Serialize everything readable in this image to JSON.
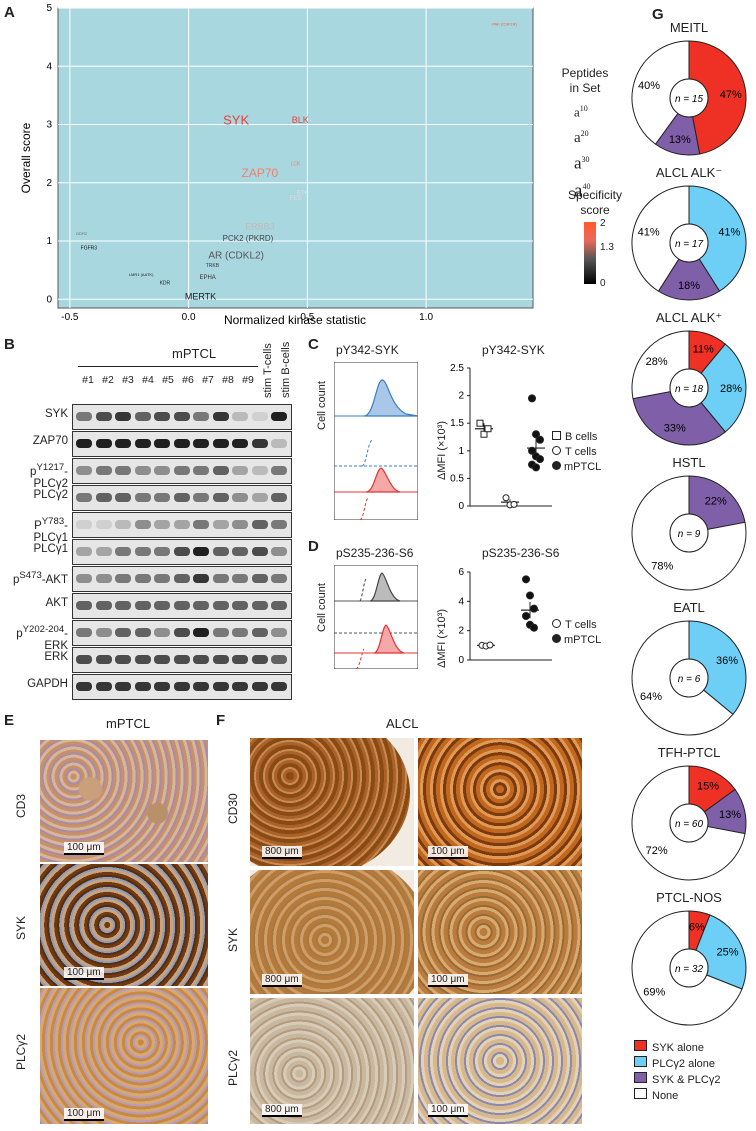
{
  "panels": {
    "A": "A",
    "B": "B",
    "C": "C",
    "D": "D",
    "E": "E",
    "F": "F",
    "G": "G"
  },
  "colors": {
    "plot_bg": "#a9d7e0",
    "red": "#ee3124",
    "blue": "#6ecff6",
    "purple": "#7f5fa8",
    "white": "#ffffff",
    "stain": "#b06a2a"
  },
  "panelA": {
    "xlabel": "Normalized kinase statistic",
    "ylabel": "Overall score",
    "legend_title": "Peptides\nin Set",
    "legend_sizes": [
      "a10",
      "a20",
      "a30",
      "a40"
    ],
    "colorbar_title": "Specificity\nscore",
    "colorbar_ticks": [
      "2",
      "1.3",
      "0"
    ]
  },
  "chart_data": {
    "type": "scatter",
    "xlabel": "Normalized kinase statistic",
    "ylabel": "Overall score",
    "xlim": [
      -0.55,
      1.45
    ],
    "ylim": [
      -0.15,
      5
    ],
    "xticks": [
      "-0.5",
      "0.0",
      "0.5",
      "1.0"
    ],
    "yticks": [
      "0",
      "1",
      "2",
      "3",
      "4",
      "5"
    ],
    "points": [
      {
        "label": "PAK (CSF1R)",
        "x": 1.33,
        "y": 4.7,
        "size": 4,
        "color": "#ee5544"
      },
      {
        "label": "SYK",
        "x": 0.2,
        "y": 3.0,
        "size": 13,
        "color": "#e8403a"
      },
      {
        "label": "BLK",
        "x": 0.47,
        "y": 3.03,
        "size": 9,
        "color": "#e8403a"
      },
      {
        "label": "LCK",
        "x": 0.45,
        "y": 2.3,
        "size": 5,
        "color": "#f08060"
      },
      {
        "label": "ZAP70",
        "x": 0.3,
        "y": 2.1,
        "size": 12,
        "color": "#f08070"
      },
      {
        "label": "BTK",
        "x": 0.48,
        "y": 1.8,
        "size": 6,
        "color": "#dddddd"
      },
      {
        "label": "FES",
        "x": 0.45,
        "y": 1.7,
        "size": 6,
        "color": "#dddddd"
      },
      {
        "label": "ERBB3",
        "x": 0.3,
        "y": 1.2,
        "size": 9,
        "color": "#bbbbbb"
      },
      {
        "label": "FGFR3",
        "x": -0.42,
        "y": 0.85,
        "size": 5,
        "color": "#111111"
      },
      {
        "label": "PCK2 (PKRD)",
        "x": 0.25,
        "y": 1.0,
        "size": 8,
        "color": "#444444"
      },
      {
        "label": "AR (CDKL2)",
        "x": 0.2,
        "y": 0.7,
        "size": 10,
        "color": "#555555"
      },
      {
        "label": "EPHA",
        "x": 0.08,
        "y": 0.35,
        "size": 6,
        "color": "#333333"
      },
      {
        "label": "MERTK",
        "x": 0.05,
        "y": 0.0,
        "size": 9,
        "color": "#222222"
      },
      {
        "label": "DDR2",
        "x": -0.45,
        "y": 1.1,
        "size": 4,
        "color": "#666666"
      },
      {
        "label": "LMR1 (AATK)",
        "x": -0.2,
        "y": 0.4,
        "size": 4,
        "color": "#222222"
      },
      {
        "label": "TRKB",
        "x": 0.1,
        "y": 0.55,
        "size": 5,
        "color": "#333333"
      },
      {
        "label": "KDR",
        "x": -0.1,
        "y": 0.25,
        "size": 5,
        "color": "#222222"
      }
    ]
  },
  "panelB": {
    "title": "mPTCL",
    "lanes": [
      "#1",
      "#2",
      "#3",
      "#4",
      "#5",
      "#6",
      "#7",
      "#8",
      "#9"
    ],
    "stim": [
      "stim T-cells",
      "stim B-cells"
    ],
    "rows": [
      "SYK",
      "ZAP70",
      "pY1217-PLCγ2",
      "PLCγ2",
      "PY783-PLCγ1",
      "PLCγ1",
      "pS473-AKT",
      "AKT",
      "pY202-204-ERK",
      "ERK",
      "GAPDH"
    ]
  },
  "panelC": {
    "hist_title": "pY342-SYK",
    "scatter_title": "pY342-SYK",
    "ylabel": "ΔMFI (×10³)",
    "yticks": [
      "0",
      "0.5",
      "1",
      "1.5",
      "2",
      "2.5"
    ],
    "hist_ylabel": "Cell count",
    "legend": [
      "B cells",
      "T cells",
      "mPTCL"
    ]
  },
  "panelD": {
    "hist_title": "pS235-236-S6",
    "scatter_title": "pS235-236-S6",
    "ylabel": "ΔMFI (×10³)",
    "yticks": [
      "0",
      "2",
      "4",
      "6"
    ],
    "hist_ylabel": "Cell count",
    "legend": [
      "T cells",
      "mPTCL"
    ]
  },
  "panelE": {
    "title": "mPTCL",
    "rows": [
      "CD3",
      "SYK",
      "PLCγ2"
    ],
    "scale": "100 μm"
  },
  "panelF": {
    "title": "ALCL",
    "rows": [
      "CD30",
      "SYK",
      "PLCγ2"
    ],
    "scale_low": "800 μm",
    "scale_high": "100 μm"
  },
  "panelG": {
    "pies": [
      {
        "title": "MEITL",
        "n": "n = 15",
        "slices": [
          {
            "k": "red",
            "v": 47,
            "label": "47%"
          },
          {
            "k": "purple",
            "v": 13,
            "label": "13%"
          },
          {
            "k": "white",
            "v": 40,
            "label": "40%"
          }
        ]
      },
      {
        "title": "ALCL ALK⁻",
        "n": "n = 17",
        "slices": [
          {
            "k": "blue",
            "v": 41,
            "label": "41%"
          },
          {
            "k": "purple",
            "v": 18,
            "label": "18%"
          },
          {
            "k": "white",
            "v": 41,
            "label": "41%"
          }
        ]
      },
      {
        "title": "ALCL ALK⁺",
        "n": "n = 18",
        "slices": [
          {
            "k": "red",
            "v": 11,
            "label": "11%"
          },
          {
            "k": "blue",
            "v": 28,
            "label": "28%"
          },
          {
            "k": "purple",
            "v": 33,
            "label": "33%"
          },
          {
            "k": "white",
            "v": 28,
            "label": "28%"
          }
        ]
      },
      {
        "title": "HSTL",
        "n": "n = 9",
        "slices": [
          {
            "k": "purple",
            "v": 22,
            "label": "22%"
          },
          {
            "k": "white",
            "v": 78,
            "label": "78%"
          }
        ]
      },
      {
        "title": "EATL",
        "n": "n = 6",
        "slices": [
          {
            "k": "blue",
            "v": 36,
            "label": "36%"
          },
          {
            "k": "white",
            "v": 64,
            "label": "64%"
          }
        ]
      },
      {
        "title": "TFH-PTCL",
        "n": "n = 60",
        "slices": [
          {
            "k": "red",
            "v": 15,
            "label": "15%"
          },
          {
            "k": "purple",
            "v": 13,
            "label": "13%"
          },
          {
            "k": "white",
            "v": 72,
            "label": "72%"
          }
        ]
      },
      {
        "title": "PTCL-NOS",
        "n": "n = 32",
        "slices": [
          {
            "k": "red",
            "v": 6,
            "label": "6%"
          },
          {
            "k": "blue",
            "v": 25,
            "label": "25%"
          },
          {
            "k": "white",
            "v": 69,
            "label": "69%"
          }
        ]
      }
    ],
    "legend": [
      {
        "k": "red",
        "label": "SYK alone"
      },
      {
        "k": "blue",
        "label": "PLCγ2 alone"
      },
      {
        "k": "purple",
        "label": "SYK & PLCγ2"
      },
      {
        "k": "white",
        "label": "None"
      }
    ]
  }
}
